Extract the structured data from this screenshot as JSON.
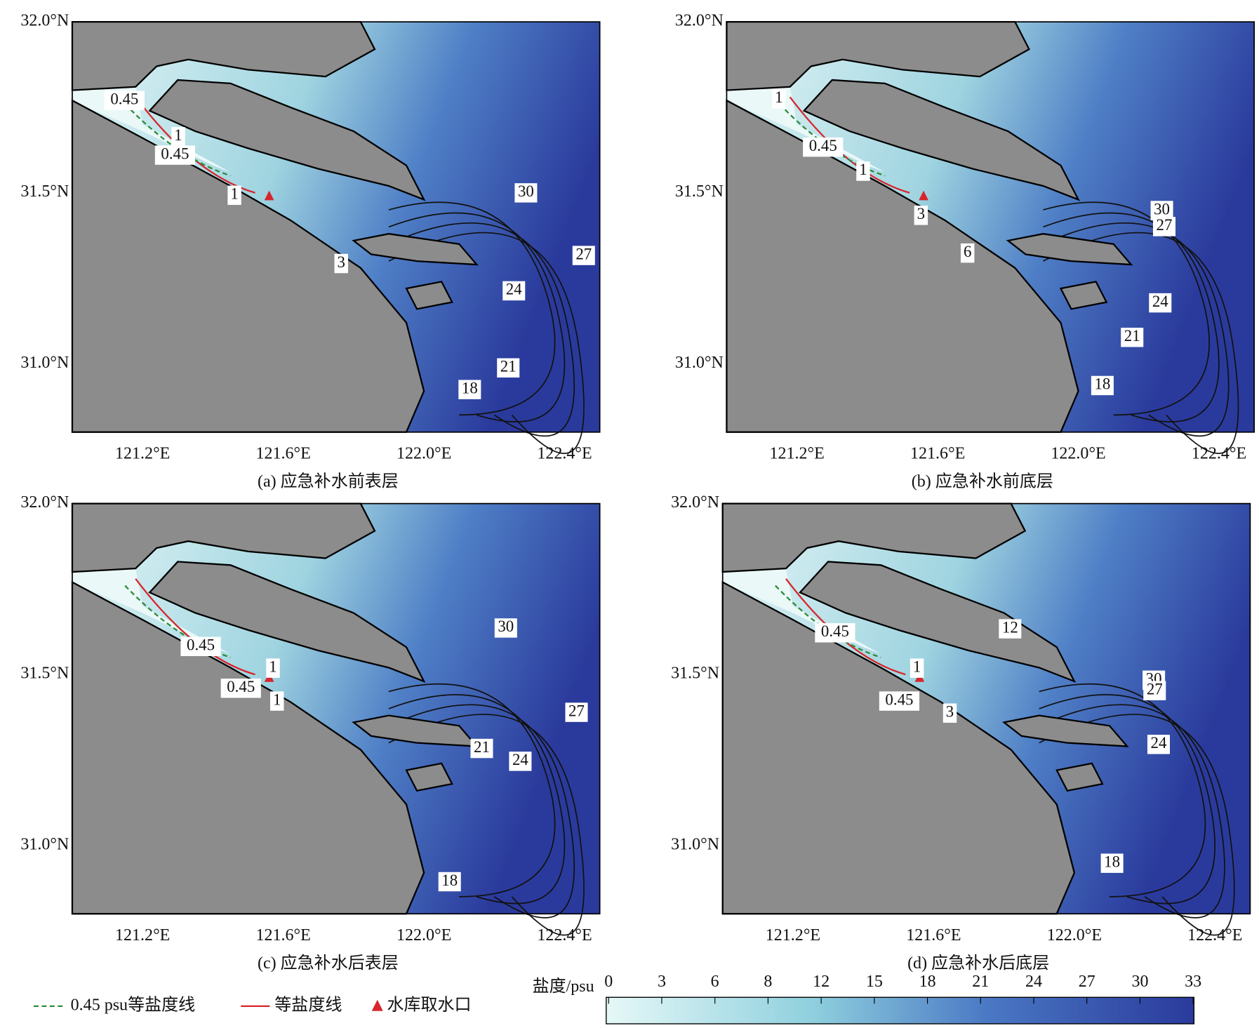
{
  "axes": {
    "xticks": [
      "121.2°E",
      "121.6°E",
      "122.0°E",
      "122.4°E"
    ],
    "yticks": [
      "32.0°N",
      "31.5°N",
      "31.0°N"
    ]
  },
  "panels": [
    {
      "caption": "(a) 应急补水前表层",
      "contour_labels": [
        "0.45",
        "1",
        "0.45",
        "1",
        "30",
        "27",
        "24",
        "3",
        "21",
        "18"
      ]
    },
    {
      "caption": "(b) 应急补水前底层",
      "contour_labels": [
        "1",
        "0.45",
        "1",
        "3",
        "6",
        "30",
        "27",
        "24",
        "21",
        "18"
      ]
    },
    {
      "caption": "(c) 应急补水后表层",
      "contour_labels": [
        "0.45",
        "0.45",
        "1",
        "1",
        "30",
        "27",
        "21",
        "24",
        "18"
      ]
    },
    {
      "caption": "(d) 应急补水后底层",
      "contour_labels": [
        "0.45",
        "1",
        "0.45",
        "3",
        "12",
        "30",
        "27",
        "24",
        "18"
      ]
    }
  ],
  "legend": [
    "0.45 psu等盐度线",
    "等盐度线",
    "水库取水口"
  ],
  "colorbar": {
    "title": "盐度/psu",
    "ticks": [
      "0",
      "3",
      "6",
      "8",
      "12",
      "15",
      "18",
      "21",
      "24",
      "27",
      "30",
      "33"
    ]
  }
}
